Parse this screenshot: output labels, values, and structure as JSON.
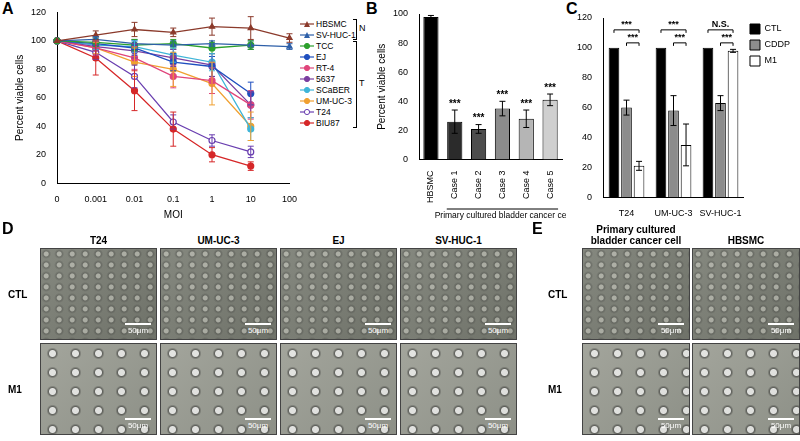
{
  "chart_data": [
    {
      "type": "line",
      "panel_label": "A",
      "x_label": "MOI",
      "y_label": "Percent viable cells",
      "categories": [
        "0",
        "0.001",
        "0.01",
        "0.1",
        "1",
        "10",
        "100"
      ],
      "ylim": [
        0,
        120
      ],
      "yticks": [
        0,
        20,
        40,
        60,
        80,
        100,
        120
      ],
      "grid": false,
      "legend": "right",
      "legend_groups": [
        {
          "label": "N",
          "members": [
            "HBSMC",
            "SV-HUC-1"
          ]
        },
        {
          "label": "T",
          "members": [
            "TCC",
            "EJ",
            "RT-4",
            "5637",
            "SCaBER",
            "UM-UC-3",
            "T24",
            "BIU87"
          ]
        }
      ],
      "series": [
        {
          "name": "HBSMC",
          "color": "#8b3a2b",
          "marker": "triangle",
          "values": [
            100,
            104,
            108,
            106,
            110,
            109,
            102
          ],
          "errors": [
            0,
            3,
            5,
            3,
            6,
            8,
            3
          ]
        },
        {
          "name": "SV-HUC-1",
          "color": "#2d5fa8",
          "marker": "triangle",
          "values": [
            100,
            101,
            98,
            97,
            98,
            97,
            96
          ],
          "errors": [
            0,
            2,
            3,
            3,
            2,
            3,
            2
          ]
        },
        {
          "name": "TCC",
          "color": "#2ca02c",
          "marker": "circle",
          "values": [
            100,
            99,
            97,
            98,
            95,
            97,
            null
          ],
          "errors": [
            0,
            3,
            4,
            3,
            4,
            3,
            null
          ]
        },
        {
          "name": "EJ",
          "color": "#1f4fbf",
          "marker": "circle",
          "values": [
            100,
            98,
            95,
            85,
            82,
            63,
            null
          ],
          "errors": [
            0,
            4,
            5,
            6,
            7,
            8,
            null
          ]
        },
        {
          "name": "RT-4",
          "color": "#e0457b",
          "marker": "circle",
          "values": [
            100,
            95,
            88,
            75,
            72,
            55,
            null
          ],
          "errors": [
            0,
            5,
            8,
            8,
            9,
            10,
            null
          ]
        },
        {
          "name": "5637",
          "color": "#7b3fa0",
          "marker": "circle",
          "values": [
            100,
            96,
            93,
            88,
            83,
            55,
            null
          ],
          "errors": [
            0,
            3,
            5,
            6,
            8,
            9,
            null
          ]
        },
        {
          "name": "SCaBER",
          "color": "#3fb5d8",
          "marker": "circle",
          "values": [
            100,
            97,
            96,
            90,
            85,
            38,
            null
          ],
          "errors": [
            0,
            3,
            4,
            5,
            6,
            8,
            null
          ]
        },
        {
          "name": "UM-UC-3",
          "color": "#f0a030",
          "marker": "circle",
          "values": [
            100,
            95,
            85,
            80,
            70,
            40,
            null
          ],
          "errors": [
            0,
            4,
            10,
            12,
            15,
            10,
            null
          ]
        },
        {
          "name": "T24",
          "color": "#6a3fb0",
          "marker": "open_circle",
          "values": [
            100,
            92,
            75,
            43,
            30,
            22,
            null
          ],
          "errors": [
            0,
            5,
            8,
            5,
            4,
            4,
            null
          ]
        },
        {
          "name": "BIU87",
          "color": "#d62728",
          "marker": "circle",
          "values": [
            100,
            88,
            65,
            38,
            20,
            12,
            null
          ],
          "errors": [
            0,
            12,
            14,
            12,
            5,
            3,
            null
          ]
        }
      ]
    },
    {
      "type": "bar",
      "panel_label": "B",
      "y_label": "Percent viable cells",
      "categories": [
        "HBSMC",
        "Case 1",
        "Case 2",
        "Case 3",
        "Case 4",
        "Case 5"
      ],
      "values": [
        98,
        26,
        21,
        35,
        28,
        41
      ],
      "errors": [
        1,
        8,
        3,
        5,
        6,
        4
      ],
      "colors": [
        "#000000",
        "#2b2b2b",
        "#4d4d4d",
        "#8c8c8c",
        "#b5b5b5",
        "#cfcfcf"
      ],
      "significance_labels": [
        null,
        "***",
        "***",
        "***",
        "***",
        "***"
      ],
      "category_group": {
        "label": "Primary cultured bladder cancer cell",
        "from": "Case 1",
        "to": "Case 5"
      },
      "ylim": [
        0,
        100
      ],
      "yticks": [
        0,
        20,
        40,
        60,
        80,
        100
      ],
      "grid": false
    },
    {
      "type": "bar",
      "panel_label": "C",
      "categories": [
        "T24",
        "UM-UC-3",
        "SV-HUC-1"
      ],
      "series": [
        {
          "name": "CTL",
          "color": "#000000",
          "values": [
            100,
            100,
            100
          ],
          "errors": [
            0,
            0,
            0
          ]
        },
        {
          "name": "CDDP",
          "color": "#8c8c8c",
          "values": [
            60,
            58,
            63
          ],
          "errors": [
            5,
            10,
            5
          ]
        },
        {
          "name": "M1",
          "color": "#ffffff",
          "values": [
            21,
            35,
            98
          ],
          "errors": [
            3,
            14,
            1
          ]
        }
      ],
      "comparisons": [
        {
          "category": "T24",
          "from": "CDDP",
          "to": "M1",
          "text": "***"
        },
        {
          "category": "T24",
          "from": "CTL",
          "to": "M1",
          "text": "***"
        },
        {
          "category": "UM-UC-3",
          "from": "CDDP",
          "to": "M1",
          "text": "***"
        },
        {
          "category": "UM-UC-3",
          "from": "CTL",
          "to": "M1",
          "text": "***"
        },
        {
          "category": "SV-HUC-1",
          "from": "CDDP",
          "to": "M1",
          "text": "***"
        },
        {
          "category": "SV-HUC-1",
          "from": "CTL",
          "to": "M1",
          "text": "N.S."
        }
      ],
      "ylim": [
        0,
        120
      ],
      "yticks": [
        0,
        20,
        40,
        60,
        80,
        100,
        120
      ],
      "grid": false,
      "legend": "right"
    }
  ],
  "micrographs": [
    {
      "panel_label": "D",
      "columns": [
        "T24",
        "UM-UC-3",
        "EJ",
        "SV-HUC-1"
      ],
      "rows": [
        "CTL",
        "M1"
      ],
      "scale_bar": "50μm"
    },
    {
      "panel_label": "E",
      "columns": [
        "Primary cultured bladder cancer cell",
        "HBSMC"
      ],
      "rows": [
        "CTL",
        "M1"
      ],
      "scale_bar": "50μm"
    }
  ]
}
